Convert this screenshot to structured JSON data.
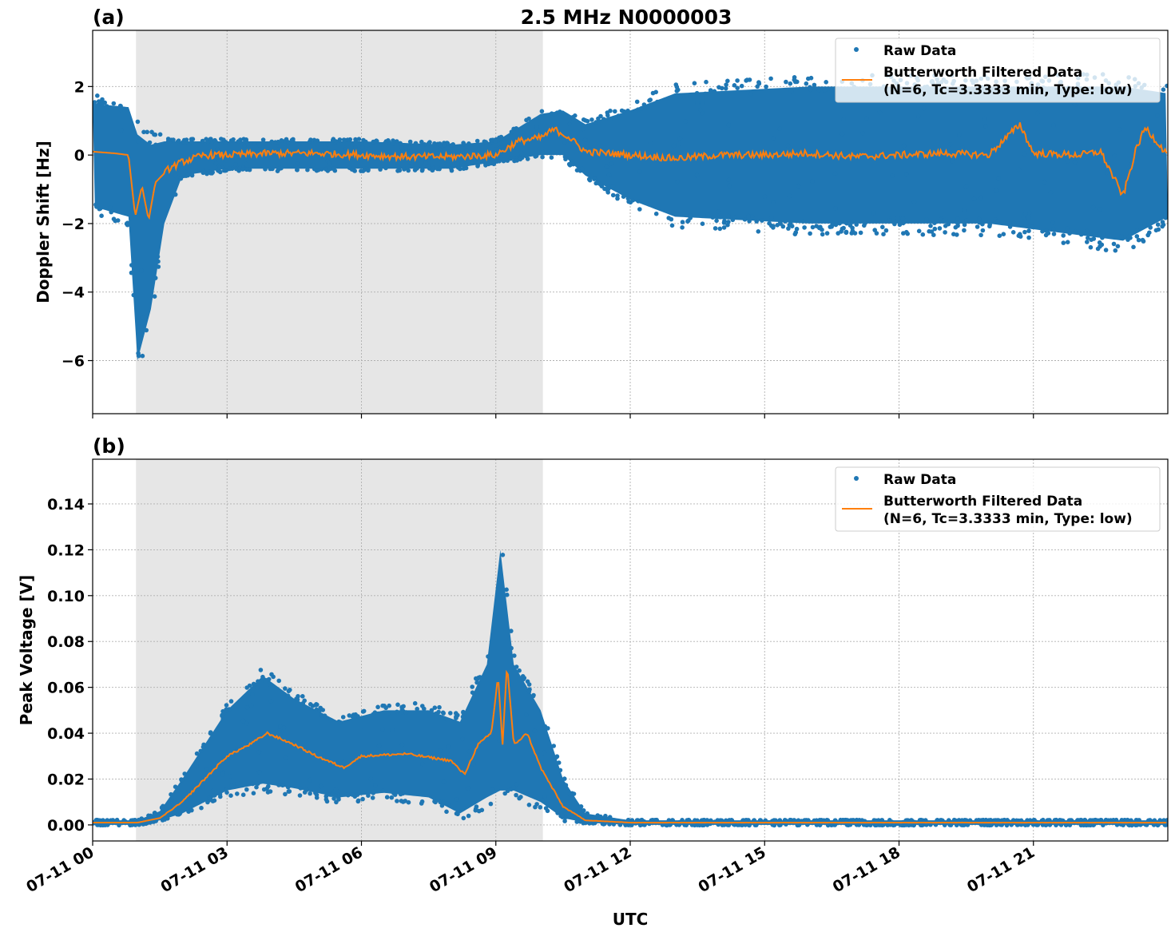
{
  "title": "2.5 MHz N0000003",
  "xlabel": "UTC",
  "x_ticks": [
    "07-11 00",
    "07-11 03",
    "07-11 06",
    "07-11 09",
    "07-11 12",
    "07-11 15",
    "07-11 18",
    "07-11 21"
  ],
  "x_tick_hours": [
    0,
    3,
    6,
    9,
    12,
    15,
    18,
    21
  ],
  "x_range_hours": [
    0,
    24
  ],
  "colors": {
    "raw": "#1f77b4",
    "filtered": "#ff7f0e",
    "shade": "#e6e6e6",
    "grid": "#b0b0b0"
  },
  "legend": {
    "raw": "Raw Data",
    "filtered_line1": "Butterworth Filtered Data",
    "filtered_line2": "(N=6, Tc=3.3333 min, Type: low)",
    "placement": "top-right"
  },
  "chart_data": [
    {
      "type": "scatter+line",
      "panel_label": "(a)",
      "ylabel": "Doppler Shift [Hz]",
      "ylim": [
        -7.55,
        3.64
      ],
      "y_ticks": [
        2,
        0,
        -2,
        -4,
        -6
      ],
      "y_tick_labels": [
        "2",
        "0",
        "−2",
        "−4",
        "−6"
      ],
      "grid": true,
      "shaded_interval": [
        "07-11 00:58",
        "07-11 10:03"
      ],
      "x_unit": "hours UTC on 07-11",
      "raw_envelope": {
        "x": [
          0,
          0.8,
          1.0,
          1.3,
          1.6,
          2.0,
          3,
          6,
          8,
          9,
          10,
          10.5,
          11,
          12,
          13,
          16,
          20,
          23,
          24
        ],
        "lower": [
          -1.5,
          -1.8,
          -6,
          -4.5,
          -2,
          -0.6,
          -0.4,
          -0.4,
          -0.4,
          -0.2,
          0,
          0,
          -0.6,
          -1.3,
          -1.8,
          -2,
          -2,
          -2.5,
          -1.8
        ],
        "upper": [
          1.5,
          1.4,
          0.6,
          0.3,
          0.4,
          0.4,
          0.4,
          0.4,
          0.3,
          0.4,
          1.2,
          1.3,
          0.9,
          1.3,
          1.8,
          2,
          2,
          2,
          1.8
        ]
      },
      "filtered": {
        "x": [
          0,
          0.5,
          0.8,
          0.95,
          1.1,
          1.25,
          1.4,
          1.7,
          2,
          2.5,
          3,
          4,
          5,
          6,
          7,
          8,
          9,
          9.5,
          10,
          10.3,
          10.6,
          11,
          12,
          13,
          14,
          15,
          16,
          17,
          18,
          19,
          20,
          20.7,
          21,
          22,
          22.5,
          23,
          23.3,
          23.5,
          24
        ],
        "y": [
          0.1,
          0.05,
          0.0,
          -1.8,
          -0.9,
          -1.9,
          -0.8,
          -0.4,
          -0.2,
          0,
          0,
          0.05,
          0.05,
          0,
          -0.05,
          -0.05,
          0,
          0.4,
          0.5,
          0.75,
          0.55,
          0.1,
          0,
          -0.1,
          0,
          0,
          0.05,
          -0.05,
          0,
          0.05,
          0,
          0.9,
          0.05,
          0,
          0.1,
          -1.2,
          0.2,
          0.8,
          0
        ]
      }
    },
    {
      "type": "scatter+line",
      "panel_label": "(b)",
      "ylabel": "Peak Voltage [V]",
      "ylim": [
        -0.007,
        0.1595
      ],
      "y_ticks": [
        0,
        0.02,
        0.04,
        0.06,
        0.08,
        0.1,
        0.12,
        0.14
      ],
      "y_tick_labels": [
        "0.00",
        "0.02",
        "0.04",
        "0.06",
        "0.08",
        "0.10",
        "0.12",
        "0.14"
      ],
      "grid": true,
      "shaded_interval": [
        "07-11 00:58",
        "07-11 10:03"
      ],
      "x_unit": "hours UTC on 07-11",
      "raw_envelope": {
        "x": [
          0,
          1,
          1.5,
          2,
          2.5,
          3,
          3.8,
          4.5,
          5.5,
          6.5,
          7.5,
          8.2,
          8.8,
          9.1,
          9.4,
          10,
          10.5,
          11,
          12,
          24
        ],
        "lower": [
          0,
          0,
          0.002,
          0.005,
          0.01,
          0.015,
          0.018,
          0.016,
          0.012,
          0.014,
          0.012,
          0.005,
          0.012,
          0.015,
          0.015,
          0.01,
          0.003,
          0.001,
          0,
          0
        ],
        "upper": [
          0.002,
          0.002,
          0.006,
          0.02,
          0.035,
          0.05,
          0.065,
          0.055,
          0.045,
          0.05,
          0.05,
          0.045,
          0.07,
          0.12,
          0.07,
          0.05,
          0.02,
          0.005,
          0.002,
          0.002
        ]
      },
      "filtered": {
        "x": [
          0,
          1,
          1.5,
          2,
          2.5,
          3,
          3.5,
          3.9,
          4.5,
          5,
          5.6,
          6,
          7,
          8,
          8.3,
          8.6,
          8.9,
          9.05,
          9.15,
          9.25,
          9.4,
          9.7,
          10,
          10.5,
          11,
          12,
          24
        ],
        "y": [
          0.001,
          0.001,
          0.003,
          0.01,
          0.02,
          0.03,
          0.035,
          0.04,
          0.035,
          0.03,
          0.025,
          0.03,
          0.031,
          0.028,
          0.022,
          0.035,
          0.04,
          0.065,
          0.035,
          0.07,
          0.035,
          0.04,
          0.025,
          0.008,
          0.002,
          0.001,
          0.001
        ]
      }
    }
  ]
}
